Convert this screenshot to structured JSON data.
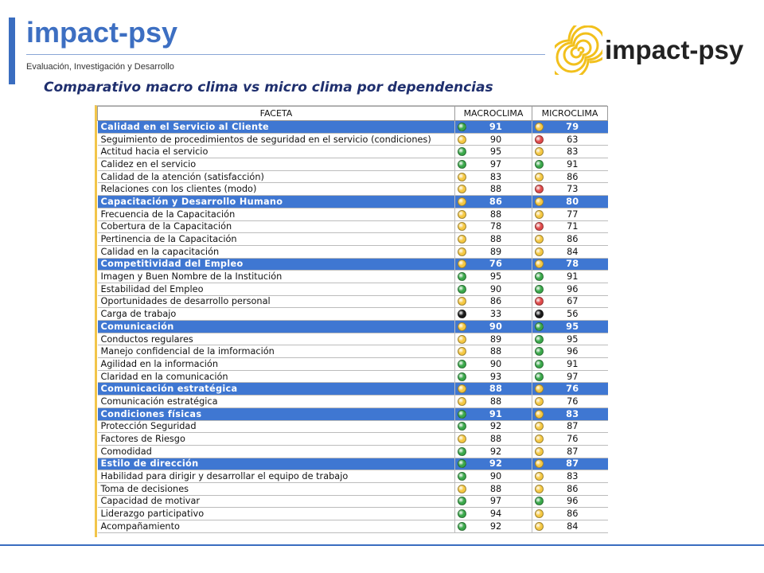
{
  "header": {
    "brand": "impact-psy",
    "tagline": "Evaluación, Investigación y Desarrollo",
    "logo_text": "impact-psy"
  },
  "slide": {
    "title": "Comparativo  macro clima vs micro clima por dependencias"
  },
  "table": {
    "columns": [
      "FACETA",
      "MACROCLIMA",
      "MICROCLIMA"
    ],
    "colors": {
      "green": "#3aa84a",
      "yellow": "#f5c842",
      "red": "#e04a4a",
      "black": "#1a1a1a",
      "category_bg": "#3f77d2"
    },
    "rows": [
      {
        "type": "cat",
        "label": "Calidad en el Servicio al Cliente",
        "macro": "91",
        "macro_c": "green",
        "micro": "79",
        "micro_c": "yellow"
      },
      {
        "type": "item",
        "label": "Seguimiento de procedimientos de seguridad en el servicio (condiciones)",
        "macro": "90",
        "macro_c": "yellow",
        "micro": "63",
        "micro_c": "red"
      },
      {
        "type": "item",
        "label": "Actitud hacia el servicio",
        "macro": "95",
        "macro_c": "green",
        "micro": "83",
        "micro_c": "yellow"
      },
      {
        "type": "item",
        "label": "Calidez en el servicio",
        "macro": "97",
        "macro_c": "green",
        "micro": "91",
        "micro_c": "green"
      },
      {
        "type": "item",
        "label": "Calidad de la atención (satisfacción)",
        "macro": "83",
        "macro_c": "yellow",
        "micro": "86",
        "micro_c": "yellow"
      },
      {
        "type": "item",
        "label": "Relaciones con los clientes (modo)",
        "macro": "88",
        "macro_c": "yellow",
        "micro": "73",
        "micro_c": "red"
      },
      {
        "type": "cat",
        "label": "Capacitación y Desarrollo Humano",
        "macro": "86",
        "macro_c": "yellow",
        "micro": "80",
        "micro_c": "yellow"
      },
      {
        "type": "item",
        "label": "Frecuencia de la Capacitación",
        "macro": "88",
        "macro_c": "yellow",
        "micro": "77",
        "micro_c": "yellow"
      },
      {
        "type": "item",
        "label": "Cobertura de la Capacitación",
        "macro": "78",
        "macro_c": "yellow",
        "micro": "71",
        "micro_c": "red"
      },
      {
        "type": "item",
        "label": "Pertinencia de la Capacitación",
        "macro": "88",
        "macro_c": "yellow",
        "micro": "86",
        "micro_c": "yellow"
      },
      {
        "type": "item",
        "label": "Calidad en la capacitación",
        "macro": "89",
        "macro_c": "yellow",
        "micro": "84",
        "micro_c": "yellow"
      },
      {
        "type": "cat",
        "label": "Competitividad del Empleo",
        "macro": "76",
        "macro_c": "yellow",
        "micro": "78",
        "micro_c": "yellow"
      },
      {
        "type": "item",
        "label": "Imagen y Buen Nombre de la Institución",
        "macro": "95",
        "macro_c": "green",
        "micro": "91",
        "micro_c": "green"
      },
      {
        "type": "item",
        "label": "Estabilidad del Empleo",
        "macro": "90",
        "macro_c": "green",
        "micro": "96",
        "micro_c": "green"
      },
      {
        "type": "item",
        "label": "Oportunidades de desarrollo personal",
        "macro": "86",
        "macro_c": "yellow",
        "micro": "67",
        "micro_c": "red"
      },
      {
        "type": "item",
        "label": "Carga de trabajo",
        "macro": "33",
        "macro_c": "black",
        "micro": "56",
        "micro_c": "black"
      },
      {
        "type": "cat",
        "label": "Comunicación",
        "macro": "90",
        "macro_c": "yellow",
        "micro": "95",
        "micro_c": "green"
      },
      {
        "type": "item",
        "label": "Conductos regulares",
        "macro": "89",
        "macro_c": "yellow",
        "micro": "95",
        "micro_c": "green"
      },
      {
        "type": "item",
        "label": "Manejo confidencial de la imformación",
        "macro": "88",
        "macro_c": "yellow",
        "micro": "96",
        "micro_c": "green"
      },
      {
        "type": "item",
        "label": "Agilidad en la información",
        "macro": "90",
        "macro_c": "green",
        "micro": "91",
        "micro_c": "green"
      },
      {
        "type": "item",
        "label": "Claridad en la comunicación",
        "macro": "93",
        "macro_c": "green",
        "micro": "97",
        "micro_c": "green"
      },
      {
        "type": "cat",
        "label": "Comunicación estratégica",
        "macro": "88",
        "macro_c": "yellow",
        "micro": "76",
        "micro_c": "yellow"
      },
      {
        "type": "item",
        "label": "Comunicación estratégica",
        "macro": "88",
        "macro_c": "yellow",
        "micro": "76",
        "micro_c": "yellow"
      },
      {
        "type": "cat",
        "label": "Condiciones físicas",
        "macro": "91",
        "macro_c": "green",
        "micro": "83",
        "micro_c": "yellow"
      },
      {
        "type": "item",
        "label": "Protección Seguridad",
        "macro": "92",
        "macro_c": "green",
        "micro": "87",
        "micro_c": "yellow"
      },
      {
        "type": "item",
        "label": "Factores de Riesgo",
        "macro": "88",
        "macro_c": "yellow",
        "micro": "76",
        "micro_c": "yellow"
      },
      {
        "type": "item",
        "label": "Comodidad",
        "macro": "92",
        "macro_c": "green",
        "micro": "87",
        "micro_c": "yellow"
      },
      {
        "type": "cat",
        "label": "Estilo de dirección",
        "macro": "92",
        "macro_c": "green",
        "micro": "87",
        "micro_c": "yellow"
      },
      {
        "type": "item",
        "label": "Habilidad para dirigir y desarrollar el equipo de trabajo",
        "macro": "90",
        "macro_c": "green",
        "micro": "83",
        "micro_c": "yellow"
      },
      {
        "type": "item",
        "label": "Toma de decisiones",
        "macro": "88",
        "macro_c": "yellow",
        "micro": "86",
        "micro_c": "yellow"
      },
      {
        "type": "item",
        "label": "Capacidad de motivar",
        "macro": "97",
        "macro_c": "green",
        "micro": "96",
        "micro_c": "green"
      },
      {
        "type": "item",
        "label": "Liderazgo participativo",
        "macro": "94",
        "macro_c": "green",
        "micro": "86",
        "micro_c": "yellow"
      },
      {
        "type": "item",
        "label": "Acompañamiento",
        "macro": "92",
        "macro_c": "green",
        "micro": "84",
        "micro_c": "yellow"
      }
    ]
  }
}
